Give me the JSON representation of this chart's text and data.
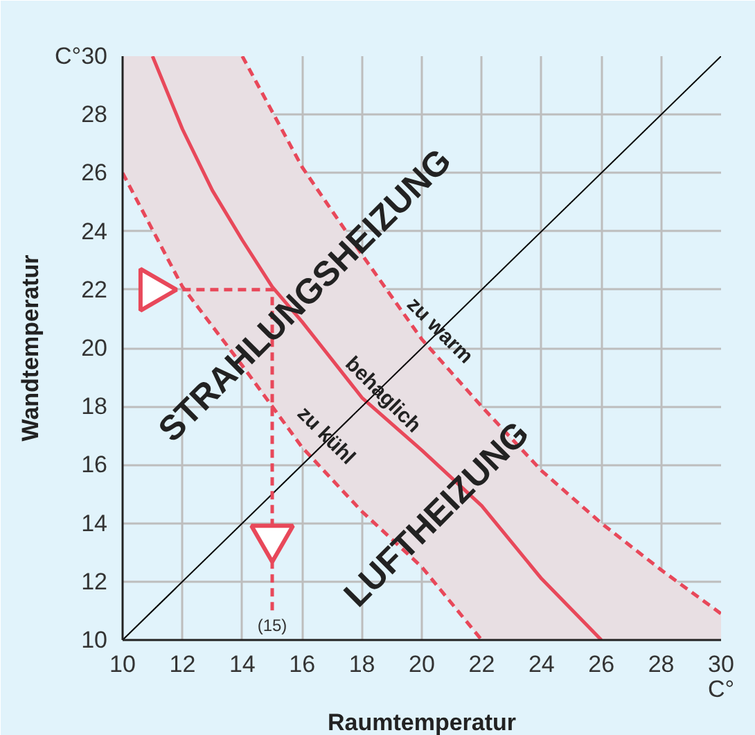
{
  "chart_data": {
    "type": "line",
    "xlabel": "Raumtemperatur",
    "ylabel": "Wandtemperatur",
    "xlim": [
      10,
      30
    ],
    "ylim": [
      10,
      30
    ],
    "xticks": [
      10,
      12,
      14,
      16,
      18,
      20,
      22,
      24,
      26,
      28,
      30
    ],
    "yticks": [
      10,
      12,
      14,
      16,
      18,
      20,
      22,
      24,
      26,
      28,
      {
        "value": 30,
        "label": "C°30"
      }
    ],
    "grid": true,
    "series": [
      {
        "name": "behaglich",
        "color": "#e8485a",
        "line_style": "solid",
        "x": [
          10,
          11,
          12,
          13,
          14,
          15,
          16,
          18,
          20,
          22,
          24,
          26,
          28,
          30
        ],
        "values": [
          null,
          30,
          27.5,
          25.4,
          23.7,
          22.1,
          20.9,
          18.3,
          16.5,
          14.6,
          12.1,
          10,
          null,
          null
        ],
        "lower": [
          26,
          24,
          22.1,
          20.7,
          19.4,
          18,
          16.6,
          14.4,
          12.5,
          10,
          10,
          10,
          10,
          10
        ],
        "upper": [
          30,
          30,
          30,
          30,
          30,
          28.1,
          26.2,
          23.2,
          20.3,
          18.0,
          15.8,
          14.0,
          12.4,
          10.9
        ]
      },
      {
        "name": "zu warm",
        "color": "#e8485a",
        "line_style": "dashed",
        "x": [
          14,
          16,
          18,
          20,
          22,
          24,
          26,
          28,
          30
        ],
        "values": [
          30,
          26.2,
          23.2,
          20.3,
          18.0,
          15.8,
          14.0,
          12.4,
          10.9
        ]
      },
      {
        "name": "zu kühl",
        "color": "#e8485a",
        "line_style": "dashed",
        "x": [
          10,
          12,
          14,
          16,
          18,
          20,
          22
        ],
        "values": [
          26,
          22.1,
          19.4,
          16.6,
          14.4,
          12.5,
          10
        ]
      },
      {
        "color": "#000000",
        "line_style": "solid",
        "x": [
          10,
          30
        ],
        "values": [
          10,
          30
        ]
      },
      {
        "color": "#e8485a",
        "line_style": "dashed",
        "x": [
          12,
          15,
          15
        ],
        "values": [
          22,
          22,
          11
        ]
      },
      {
        "type": "scatter",
        "marker": "triangle",
        "color": "#e8485a",
        "x": [
          11,
          15
        ],
        "values": [
          22,
          13.5
        ]
      }
    ],
    "annotations": [
      "STRAHLUNGSHEIZUNG",
      "LUFTHEIZUNG",
      {
        "text": "(15)",
        "x": 15,
        "y": 10.5
      },
      "C°"
    ]
  }
}
